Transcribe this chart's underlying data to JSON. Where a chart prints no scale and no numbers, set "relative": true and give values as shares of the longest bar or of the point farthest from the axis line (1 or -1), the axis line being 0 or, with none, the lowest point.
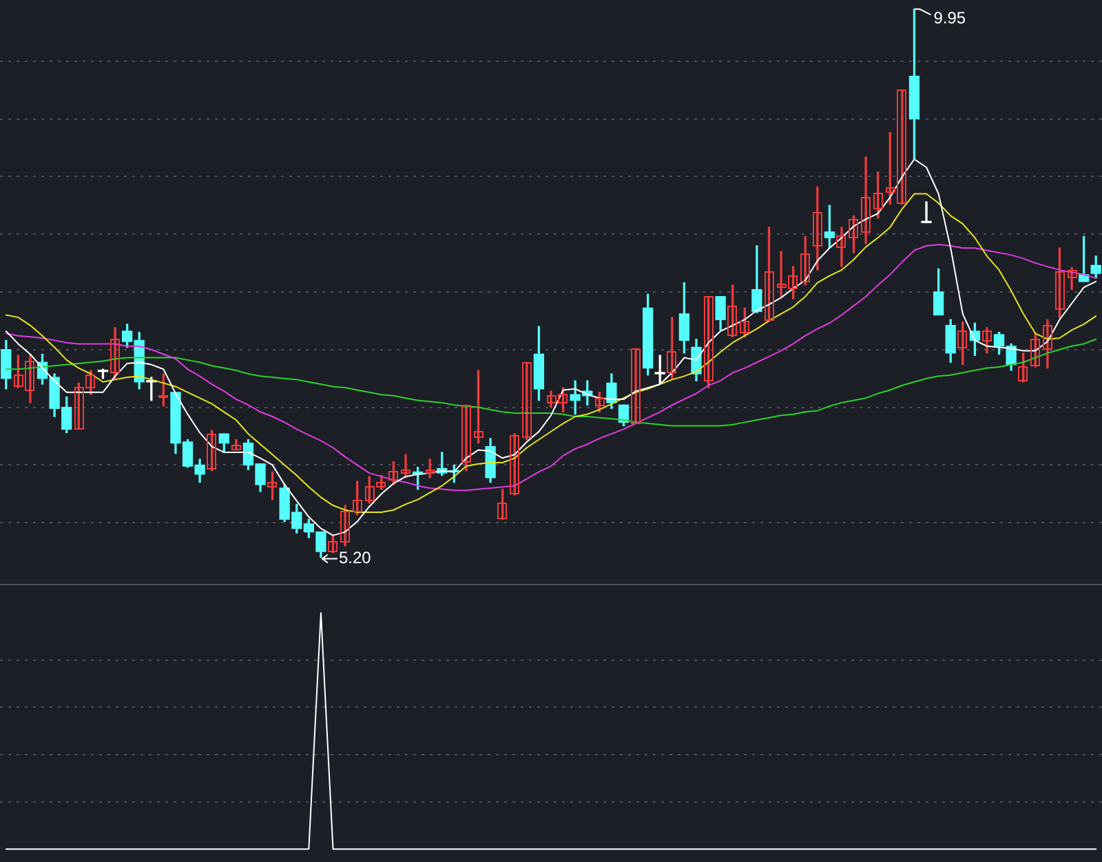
{
  "chart_data": [
    {
      "type": "candlestick",
      "categories": [
        null,
        null,
        null,
        null,
        null,
        null,
        null,
        null,
        null,
        null,
        null,
        null,
        null,
        null,
        null,
        null,
        null,
        null,
        null,
        null,
        null,
        null,
        null,
        null,
        null,
        null,
        null,
        null,
        null,
        null,
        null,
        null,
        null,
        null,
        null,
        null,
        null,
        null,
        null,
        null,
        null,
        null,
        null,
        null,
        null,
        null,
        null,
        null,
        null,
        null,
        null,
        null,
        null,
        null,
        null,
        null,
        null,
        null,
        null,
        null,
        null,
        null,
        null,
        null,
        null,
        null,
        null,
        null,
        null,
        null,
        null,
        null,
        null,
        null,
        null,
        null,
        null,
        null,
        null,
        null,
        null,
        null,
        null,
        null,
        null,
        null,
        null,
        null,
        null,
        null,
        null
      ],
      "ohlc": [
        [
          7.0,
          7.08,
          6.66,
          6.75
        ],
        [
          6.68,
          6.95,
          6.67,
          6.78
        ],
        [
          6.64,
          6.96,
          6.54,
          6.9
        ],
        [
          6.89,
          6.96,
          6.7,
          6.75
        ],
        [
          6.76,
          6.79,
          6.42,
          6.49
        ],
        [
          6.5,
          6.59,
          6.28,
          6.31
        ],
        [
          6.31,
          6.71,
          6.31,
          6.68
        ],
        [
          6.67,
          6.82,
          6.61,
          6.78
        ],
        [
          6.81,
          6.83,
          6.75,
          6.81
        ],
        [
          6.8,
          7.19,
          6.75,
          7.1
        ],
        [
          7.16,
          7.22,
          7.02,
          7.07
        ],
        [
          7.08,
          7.15,
          6.66,
          6.72
        ],
        [
          6.72,
          6.76,
          6.56,
          6.72
        ],
        [
          6.58,
          6.79,
          6.51,
          6.61
        ],
        [
          6.63,
          6.63,
          6.1,
          6.19
        ],
        [
          6.2,
          6.22,
          5.98,
          5.99
        ],
        [
          6.0,
          6.05,
          5.85,
          5.92
        ],
        [
          5.96,
          6.3,
          5.95,
          6.27
        ],
        [
          6.27,
          6.27,
          6.11,
          6.19
        ],
        [
          6.13,
          6.22,
          6.13,
          6.17
        ],
        [
          6.19,
          6.22,
          5.96,
          6.0
        ],
        [
          6.01,
          6.01,
          5.77,
          5.83
        ],
        [
          5.81,
          5.94,
          5.7,
          5.85
        ],
        [
          5.8,
          5.83,
          5.51,
          5.53
        ],
        [
          5.59,
          5.66,
          5.41,
          5.45
        ],
        [
          5.49,
          5.53,
          5.37,
          5.42
        ],
        [
          5.42,
          5.42,
          5.2,
          5.25
        ],
        [
          5.24,
          5.39,
          5.24,
          5.34
        ],
        [
          5.33,
          5.65,
          5.3,
          5.6
        ],
        [
          5.59,
          5.86,
          5.57,
          5.7
        ],
        [
          5.69,
          5.9,
          5.67,
          5.82
        ],
        [
          5.81,
          5.91,
          5.79,
          5.85
        ],
        [
          5.87,
          6.03,
          5.83,
          5.95
        ],
        [
          5.92,
          6.09,
          5.89,
          5.96
        ],
        [
          5.94,
          5.98,
          5.79,
          5.92
        ],
        [
          5.92,
          6.05,
          5.89,
          5.96
        ],
        [
          5.97,
          6.11,
          5.91,
          5.93
        ],
        [
          5.95,
          6.0,
          5.85,
          5.94
        ],
        [
          6.02,
          6.52,
          5.95,
          6.52
        ],
        [
          6.24,
          6.82,
          6.19,
          6.29
        ],
        [
          6.16,
          6.23,
          5.85,
          5.89
        ],
        [
          5.53,
          5.79,
          5.53,
          5.68
        ],
        [
          5.74,
          6.27,
          5.74,
          6.26
        ],
        [
          6.23,
          6.89,
          6.22,
          6.89
        ],
        [
          6.96,
          7.2,
          6.56,
          6.66
        ],
        [
          6.53,
          6.64,
          6.5,
          6.61
        ],
        [
          6.53,
          6.67,
          6.46,
          6.62
        ],
        [
          6.61,
          6.73,
          6.44,
          6.56
        ],
        [
          6.64,
          6.73,
          6.52,
          6.6
        ],
        [
          6.51,
          6.63,
          6.46,
          6.58
        ],
        [
          6.71,
          6.79,
          6.49,
          6.54
        ],
        [
          6.52,
          6.52,
          6.34,
          6.37
        ],
        [
          6.36,
          7.01,
          6.36,
          7.01
        ],
        [
          7.36,
          7.48,
          6.78,
          6.84
        ],
        [
          6.79,
          6.95,
          6.71,
          6.79
        ],
        [
          6.79,
          7.28,
          6.75,
          6.99
        ],
        [
          7.31,
          7.58,
          6.97,
          7.08
        ],
        [
          7.02,
          7.09,
          6.73,
          6.79
        ],
        [
          6.73,
          7.46,
          6.67,
          7.46
        ],
        [
          7.46,
          7.46,
          7.17,
          7.26
        ],
        [
          7.12,
          7.56,
          7.11,
          7.38
        ],
        [
          7.14,
          7.36,
          7.11,
          7.25
        ],
        [
          7.52,
          7.9,
          7.32,
          7.33
        ],
        [
          7.25,
          8.06,
          7.25,
          7.68
        ],
        [
          7.53,
          7.85,
          7.46,
          7.57
        ],
        [
          7.52,
          7.72,
          7.44,
          7.64
        ],
        [
          7.58,
          7.98,
          7.56,
          7.83
        ],
        [
          7.89,
          8.41,
          7.69,
          8.19
        ],
        [
          8.02,
          8.25,
          7.88,
          7.97
        ],
        [
          7.88,
          8.06,
          7.72,
          7.99
        ],
        [
          7.97,
          8.16,
          7.84,
          8.13
        ],
        [
          8.01,
          8.67,
          7.92,
          8.32
        ],
        [
          8.22,
          8.54,
          8.14,
          8.36
        ],
        [
          8.36,
          8.88,
          8.26,
          8.41
        ],
        [
          8.26,
          9.25,
          8.26,
          9.25
        ],
        [
          9.37,
          9.95,
          8.65,
          9.0
        ],
        [
          8.1,
          8.28,
          8.1,
          8.1
        ],
        [
          7.5,
          7.7,
          7.3,
          7.3
        ],
        [
          7.21,
          7.26,
          6.89,
          6.97
        ],
        [
          7.01,
          7.24,
          6.87,
          7.17
        ],
        [
          7.16,
          7.23,
          6.95,
          7.08
        ],
        [
          7.07,
          7.19,
          6.97,
          7.16
        ],
        [
          7.13,
          7.15,
          6.96,
          7.03
        ],
        [
          7.03,
          7.05,
          6.82,
          6.87
        ],
        [
          6.72,
          6.97,
          6.72,
          6.85
        ],
        [
          6.85,
          7.14,
          6.85,
          7.09
        ],
        [
          7.0,
          7.26,
          6.84,
          7.21
        ],
        [
          7.34,
          7.88,
          7.28,
          7.68
        ],
        [
          7.62,
          7.71,
          7.52,
          7.69
        ],
        [
          7.65,
          7.98,
          7.59,
          7.59
        ],
        [
          7.73,
          7.81,
          7.62,
          7.66
        ]
      ],
      "colors": [
        "#54fcfc",
        "#ee3b3b",
        "#ee3b3b",
        "#54fcfc",
        "#54fcfc",
        "#54fcfc",
        "#ee3b3b",
        "#ee3b3b",
        "#ffffff",
        "#ee3b3b",
        "#54fcfc",
        "#54fcfc",
        "#ffffff",
        "#ee3b3b",
        "#54fcfc",
        "#54fcfc",
        "#54fcfc",
        "#ee3b3b",
        "#54fcfc",
        "#ee3b3b",
        "#54fcfc",
        "#54fcfc",
        "#ee3b3b",
        "#54fcfc",
        "#54fcfc",
        "#54fcfc",
        "#54fcfc",
        "#ee3b3b",
        "#ee3b3b",
        "#ee3b3b",
        "#ee3b3b",
        "#ee3b3b",
        "#ee3b3b",
        "#ee3b3b",
        "#54fcfc",
        "#ee3b3b",
        "#54fcfc",
        "#54fcfc",
        "#ee3b3b",
        "#ee3b3b",
        "#54fcfc",
        "#ee3b3b",
        "#ee3b3b",
        "#ee3b3b",
        "#54fcfc",
        "#ee3b3b",
        "#ee3b3b",
        "#54fcfc",
        "#54fcfc",
        "#ee3b3b",
        "#54fcfc",
        "#54fcfc",
        "#ee3b3b",
        "#54fcfc",
        "#ffffff",
        "#ee3b3b",
        "#54fcfc",
        "#54fcfc",
        "#ee3b3b",
        "#54fcfc",
        "#ee3b3b",
        "#ee3b3b",
        "#54fcfc",
        "#ee3b3b",
        "#ee3b3b",
        "#ee3b3b",
        "#ee3b3b",
        "#ee3b3b",
        "#54fcfc",
        "#ee3b3b",
        "#ee3b3b",
        "#ee3b3b",
        "#ee3b3b",
        "#ee3b3b",
        "#ee3b3b",
        "#54fcfc",
        "#ffffff",
        "#54fcfc",
        "#54fcfc",
        "#ee3b3b",
        "#54fcfc",
        "#ee3b3b",
        "#54fcfc",
        "#54fcfc",
        "#ee3b3b",
        "#ee3b3b",
        "#ee3b3b",
        "#ee3b3b",
        "#ee3b3b",
        "#54fcfc",
        "#54fcfc"
      ],
      "series": [
        {
          "type": "line",
          "color": "#ffffff",
          "values": [
            7.16,
            7.05,
            6.96,
            6.84,
            6.73,
            6.63,
            6.63,
            6.63,
            6.63,
            6.77,
            6.88,
            6.89,
            6.87,
            6.83,
            6.62,
            6.44,
            6.28,
            6.16,
            6.11,
            6.11,
            6.11,
            6.06,
            6.0,
            5.83,
            5.69,
            5.55,
            5.45,
            5.39,
            5.42,
            5.51,
            5.64,
            5.75,
            5.84,
            5.9,
            5.92,
            5.93,
            5.95,
            5.94,
            6.06,
            6.13,
            6.12,
            6.06,
            6.09,
            6.2,
            6.29,
            6.43,
            6.65,
            6.66,
            6.61,
            6.58,
            6.57,
            6.57,
            6.64,
            6.67,
            6.7,
            6.8,
            6.93,
            6.91,
            7.06,
            7.16,
            7.21,
            7.26,
            7.34,
            7.39,
            7.45,
            7.53,
            7.6,
            7.77,
            7.88,
            7.97,
            8.07,
            8.13,
            8.18,
            8.32,
            8.5,
            8.65,
            8.58,
            8.35,
            7.88,
            7.31,
            7.08,
            7.03,
            7.02,
            7.01,
            6.99,
            6.99,
            7.07,
            7.26,
            7.4,
            7.54,
            7.59
          ]
        },
        {
          "type": "line",
          "color": "#e6e61e",
          "values": [
            7.3,
            7.28,
            7.21,
            7.12,
            7.02,
            6.91,
            6.84,
            6.79,
            6.72,
            6.74,
            6.76,
            6.77,
            6.74,
            6.71,
            6.68,
            6.63,
            6.58,
            6.53,
            6.46,
            6.39,
            6.27,
            6.18,
            6.09,
            6.0,
            5.91,
            5.81,
            5.72,
            5.65,
            5.61,
            5.59,
            5.59,
            5.59,
            5.61,
            5.66,
            5.7,
            5.76,
            5.82,
            5.9,
            5.99,
            6.01,
            6.02,
            6.02,
            6.06,
            6.15,
            6.22,
            6.29,
            6.36,
            6.42,
            6.44,
            6.48,
            6.53,
            6.58,
            6.63,
            6.66,
            6.7,
            6.74,
            6.77,
            6.81,
            6.89,
            6.98,
            7.06,
            7.12,
            7.18,
            7.25,
            7.31,
            7.37,
            7.46,
            7.58,
            7.64,
            7.69,
            7.78,
            7.89,
            7.97,
            8.06,
            8.22,
            8.35,
            8.35,
            8.27,
            8.16,
            8.09,
            7.97,
            7.81,
            7.69,
            7.51,
            7.31,
            7.14,
            7.09,
            7.1,
            7.17,
            7.22,
            7.29
          ]
        },
        {
          "type": "line",
          "color": "#e03ee0",
          "values": [
            7.14,
            7.12,
            7.11,
            7.1,
            7.08,
            7.06,
            7.05,
            7.05,
            7.05,
            7.05,
            7.03,
            7.03,
            7.0,
            6.96,
            6.92,
            6.83,
            6.77,
            6.7,
            6.64,
            6.57,
            6.52,
            6.46,
            6.42,
            6.37,
            6.31,
            6.26,
            6.21,
            6.15,
            6.07,
            6.0,
            5.93,
            5.9,
            5.87,
            5.85,
            5.82,
            5.8,
            5.79,
            5.78,
            5.78,
            5.79,
            5.8,
            5.81,
            5.82,
            5.88,
            5.94,
            5.99,
            6.08,
            6.14,
            6.18,
            6.23,
            6.27,
            6.31,
            6.36,
            6.41,
            6.46,
            6.52,
            6.57,
            6.62,
            6.69,
            6.73,
            6.8,
            6.84,
            6.89,
            6.94,
            6.99,
            7.05,
            7.12,
            7.18,
            7.23,
            7.3,
            7.38,
            7.46,
            7.56,
            7.65,
            7.76,
            7.86,
            7.9,
            7.91,
            7.9,
            7.88,
            7.88,
            7.86,
            7.84,
            7.82,
            7.79,
            7.75,
            7.72,
            7.69,
            7.67,
            7.65,
            7.62
          ]
        },
        {
          "type": "line",
          "color": "#2ed12e",
          "values": [
            6.83,
            6.83,
            6.84,
            6.85,
            6.86,
            6.87,
            6.88,
            6.89,
            6.9,
            6.92,
            6.93,
            6.93,
            6.93,
            6.93,
            6.93,
            6.91,
            6.89,
            6.86,
            6.84,
            6.82,
            6.79,
            6.77,
            6.76,
            6.75,
            6.74,
            6.72,
            6.7,
            6.68,
            6.67,
            6.65,
            6.63,
            6.61,
            6.6,
            6.58,
            6.56,
            6.55,
            6.54,
            6.52,
            6.51,
            6.5,
            6.48,
            6.46,
            6.45,
            6.45,
            6.45,
            6.45,
            6.44,
            6.42,
            6.42,
            6.41,
            6.4,
            6.39,
            6.37,
            6.36,
            6.35,
            6.34,
            6.34,
            6.34,
            6.34,
            6.34,
            6.35,
            6.37,
            6.39,
            6.41,
            6.43,
            6.44,
            6.46,
            6.47,
            6.51,
            6.54,
            6.56,
            6.58,
            6.62,
            6.65,
            6.69,
            6.72,
            6.75,
            6.77,
            6.78,
            6.8,
            6.82,
            6.84,
            6.85,
            6.87,
            6.89,
            6.93,
            6.97,
            7.0,
            7.03,
            7.05,
            7.09
          ]
        }
      ],
      "yticks": [
        {
          "value": 5.5,
          "label": null
        },
        {
          "value": 6.0,
          "label": null
        },
        {
          "value": 6.5,
          "label": null
        },
        {
          "value": 7.0,
          "label": null
        },
        {
          "value": 7.5,
          "label": null
        },
        {
          "value": 8.0,
          "label": null
        },
        {
          "value": 8.5,
          "label": null
        },
        {
          "value": 9.0,
          "label": null
        },
        {
          "value": 9.5,
          "label": null
        }
      ],
      "grid": "y",
      "tick_labels": false,
      "marker": "none",
      "annotations": [
        "9.95",
        "5.20"
      ]
    },
    {
      "type": "line",
      "relative": true,
      "categories": [
        null,
        null,
        null,
        null,
        null,
        null,
        null,
        null,
        null,
        null,
        null,
        null,
        null,
        null,
        null,
        null,
        null,
        null,
        null,
        null,
        null,
        null,
        null,
        null,
        null,
        null,
        null,
        null,
        null,
        null,
        null,
        null,
        null,
        null,
        null,
        null,
        null,
        null,
        null,
        null,
        null,
        null,
        null,
        null,
        null,
        null,
        null,
        null,
        null,
        null,
        null,
        null,
        null,
        null,
        null,
        null,
        null,
        null,
        null,
        null,
        null,
        null,
        null,
        null,
        null,
        null,
        null,
        null,
        null,
        null,
        null,
        null,
        null,
        null,
        null,
        null,
        null,
        null,
        null,
        null,
        null,
        null,
        null,
        null,
        null,
        null,
        null,
        null,
        null,
        null,
        null
      ],
      "values": [
        0,
        0,
        0,
        0,
        0,
        0,
        0,
        0,
        0,
        0,
        0,
        0,
        0,
        0,
        0,
        0,
        0,
        0,
        0,
        0,
        0,
        0,
        0,
        0,
        0,
        0,
        1,
        0,
        0,
        0,
        0,
        0,
        0,
        0,
        0,
        0,
        0,
        0,
        0,
        0,
        0,
        0,
        0,
        0,
        0,
        0,
        0,
        0,
        0,
        0,
        0,
        0,
        0,
        0,
        0,
        0,
        0,
        0,
        0,
        0,
        0,
        0,
        0,
        0,
        0,
        0,
        0,
        0,
        0,
        0,
        0,
        0,
        0,
        0,
        0,
        0,
        0,
        0,
        0,
        0,
        0,
        0,
        0,
        0,
        0,
        0,
        0,
        0,
        0,
        0,
        0
      ],
      "color": "#ffffff",
      "marker": "none",
      "grid": "y",
      "tick_labels": false
    }
  ]
}
